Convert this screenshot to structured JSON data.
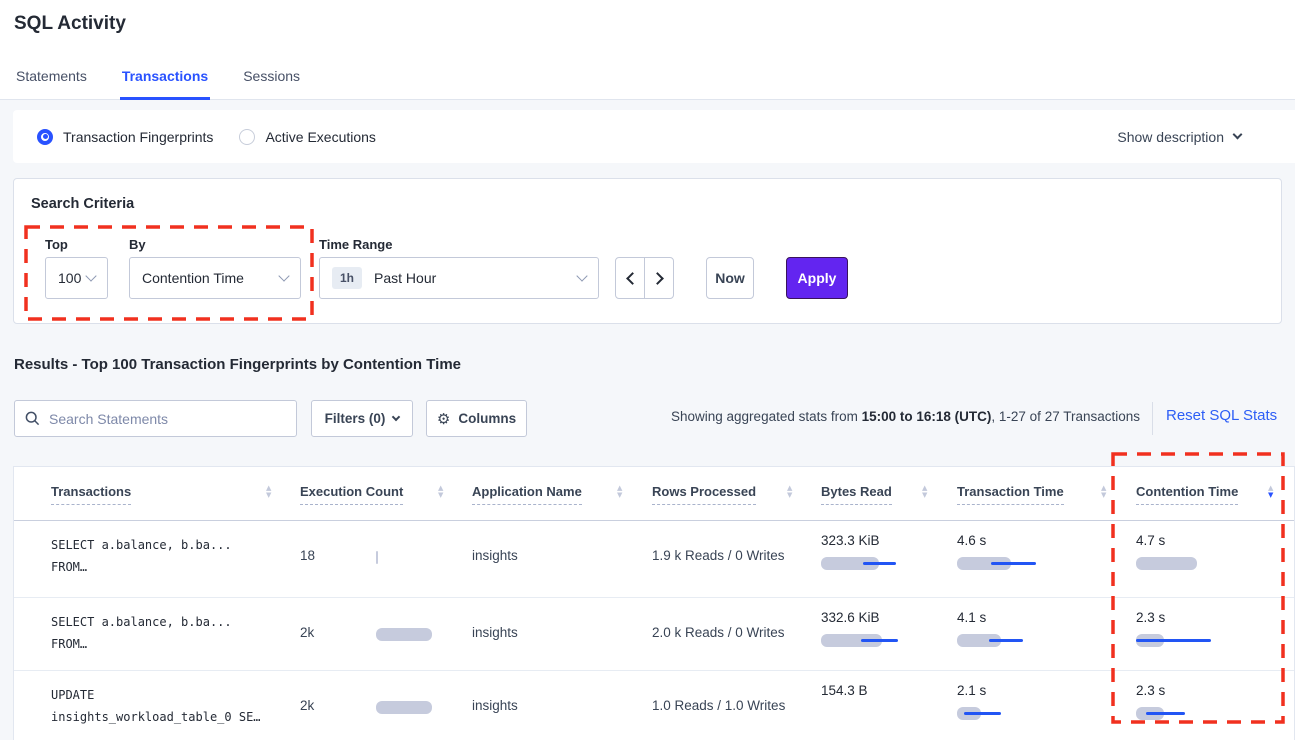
{
  "page": {
    "title": "SQL Activity"
  },
  "tabs": [
    {
      "label": "Statements",
      "active": false
    },
    {
      "label": "Transactions",
      "active": true
    },
    {
      "label": "Sessions",
      "active": false
    }
  ],
  "view_toggle": {
    "options": [
      {
        "label": "Transaction Fingerprints",
        "selected": true
      },
      {
        "label": "Active Executions",
        "selected": false
      }
    ],
    "show_description": "Show description"
  },
  "search_criteria": {
    "heading": "Search Criteria",
    "top": {
      "label": "Top",
      "value": "100"
    },
    "by": {
      "label": "By",
      "value": "Contention Time"
    },
    "time_range": {
      "label": "Time Range",
      "badge": "1h",
      "value": "Past Hour"
    },
    "now_label": "Now",
    "apply_label": "Apply"
  },
  "results": {
    "heading": "Results - Top 100 Transaction Fingerprints by Contention Time",
    "search_placeholder": "Search Statements",
    "filters_label": "Filters (0)",
    "columns_label": "Columns",
    "stats_prefix": "Showing aggregated stats from ",
    "stats_range": "15:00 to 16:18 (UTC)",
    "stats_suffix": ", 1-27 of 27 Transactions",
    "reset_label": "Reset SQL Stats"
  },
  "icons": {
    "gear": "⚙",
    "sort_up": "▲",
    "sort_down": "▼"
  },
  "table": {
    "headers": [
      {
        "label": "Transactions"
      },
      {
        "label": "Execution Count"
      },
      {
        "label": "Application Name"
      },
      {
        "label": "Rows Processed"
      },
      {
        "label": "Bytes Read"
      },
      {
        "label": "Transaction Time"
      },
      {
        "label": "Contention Time",
        "sort": "desc"
      }
    ],
    "rows": [
      {
        "sql_line1": "SELECT a.balance, b.ba...",
        "sql_line2": "FROM…",
        "exec_count": "18",
        "exec_bar_pct": 3,
        "app_name": "insights",
        "rows_processed": "1.9 k Reads / 0 Writes",
        "bytes_read": {
          "value": "323.3 KiB",
          "bar_pct": 53,
          "line_left_pct": 38,
          "line_width_pct": 30
        },
        "transaction_time": {
          "value": "4.6 s",
          "bar_pct": 49,
          "line_left_pct": 31,
          "line_width_pct": 41
        },
        "contention_time": {
          "value": "4.7 s",
          "bar_pct": 55,
          "line_left_pct": 0,
          "line_width_pct": 0
        }
      },
      {
        "sql_line1": "SELECT a.balance, b.ba...",
        "sql_line2": "FROM…",
        "exec_count": "2k",
        "exec_bar_pct": 80,
        "app_name": "insights",
        "rows_processed": "2.0 k Reads / 0 Writes",
        "bytes_read": {
          "value": "332.6 KiB",
          "bar_pct": 55,
          "line_left_pct": 36,
          "line_width_pct": 34
        },
        "transaction_time": {
          "value": "4.1 s",
          "bar_pct": 40,
          "line_left_pct": 29,
          "line_width_pct": 31
        },
        "contention_time": {
          "value": "2.3 s",
          "bar_pct": 25,
          "line_left_pct": 0,
          "line_width_pct": 68
        }
      },
      {
        "sql_line1": "UPDATE",
        "sql_line2": "insights_workload_table_0 SE…",
        "exec_count": "2k",
        "exec_bar_pct": 80,
        "app_name": "insights",
        "rows_processed": "1.0 Reads / 1.0 Writes",
        "bytes_read": {
          "value": "154.3 B",
          "bar_pct": 0,
          "line_left_pct": 0,
          "line_width_pct": 0
        },
        "transaction_time": {
          "value": "2.1 s",
          "bar_pct": 22,
          "line_left_pct": 6,
          "line_width_pct": 34
        },
        "contention_time": {
          "value": "2.3 s",
          "bar_pct": 25,
          "line_left_pct": 9,
          "line_width_pct": 36
        }
      }
    ]
  },
  "colors": {
    "accent_blue": "#2952ff",
    "primary_purple": "#6325f0",
    "annotation_red": "#f1301f",
    "link_blue": "#2d5ef6",
    "bar_gray": "#c6cbdd"
  }
}
